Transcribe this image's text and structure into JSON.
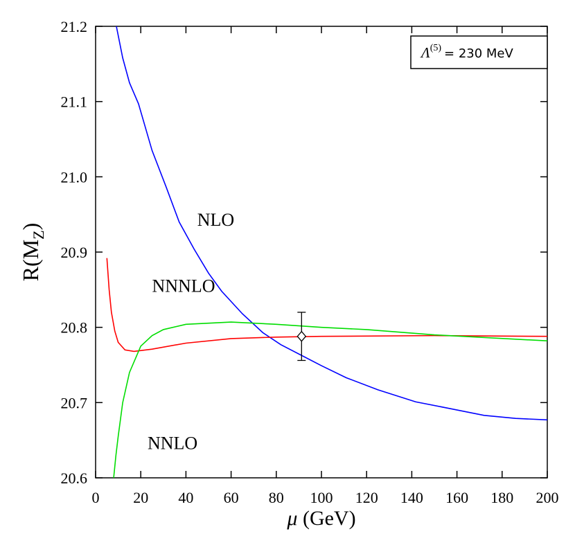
{
  "chart_data": {
    "type": "line",
    "x_label": {
      "symbol": "μ",
      "text": " (GeV)"
    },
    "y_label": {
      "main": "R(M",
      "subscript": "Z",
      "close": ")"
    },
    "box": {
      "symbol": "Λ",
      "superscript": "(5)",
      "text": "= 230  MeV"
    },
    "xlim": [
      0,
      200
    ],
    "ylim": [
      20.6,
      21.2
    ],
    "xticks": [
      0,
      20,
      40,
      60,
      80,
      100,
      120,
      140,
      160,
      180,
      200
    ],
    "yticks": [
      20.6,
      20.7,
      20.8,
      20.9,
      {
        "value": 21.0,
        "label": "21.0"
      },
      21.1,
      21.2
    ],
    "series": [
      {
        "name": "NLO",
        "color": "#0000ff",
        "x": [
          9.2,
          12,
          15,
          19,
          25,
          31.3,
          37,
          43.6,
          50,
          55.8,
          65,
          74,
          82,
          91,
          100,
          111,
          125,
          141.7,
          157,
          172,
          186,
          200
        ],
        "values": [
          21.2,
          21.158,
          21.125,
          21.097,
          21.035,
          20.986,
          20.94,
          20.904,
          20.872,
          20.848,
          20.818,
          20.793,
          20.777,
          20.763,
          20.749,
          20.733,
          20.717,
          20.701,
          20.692,
          20.683,
          20.679,
          20.677
        ]
      },
      {
        "name": "NNNLO",
        "color": "#ff0000",
        "x": [
          5,
          6,
          7,
          8.5,
          10,
          13,
          17,
          25,
          40,
          60,
          80,
          100,
          150,
          200
        ],
        "values": [
          20.892,
          20.85,
          20.82,
          20.795,
          20.78,
          20.77,
          20.768,
          20.771,
          20.779,
          20.785,
          20.787,
          20.788,
          20.789,
          20.788
        ]
      },
      {
        "name": "NNLO",
        "color": "#00dd00",
        "x": [
          8,
          9,
          10,
          12,
          15,
          20,
          25,
          30,
          40,
          60,
          80,
          100,
          120,
          150,
          200
        ],
        "values": [
          20.6,
          20.63,
          20.655,
          20.7,
          20.74,
          20.775,
          20.789,
          20.797,
          20.804,
          20.807,
          20.804,
          20.8,
          20.797,
          20.79,
          20.782
        ]
      }
    ],
    "labels": [
      {
        "text": "NLO",
        "x": 45,
        "y": 20.935
      },
      {
        "text": "NNNLO",
        "x": 25,
        "y": 20.847
      },
      {
        "text": "NNLO",
        "x": 23,
        "y": 20.638
      }
    ],
    "error_point": {
      "x": 91.2,
      "y": 20.788,
      "error": 0.032
    }
  }
}
